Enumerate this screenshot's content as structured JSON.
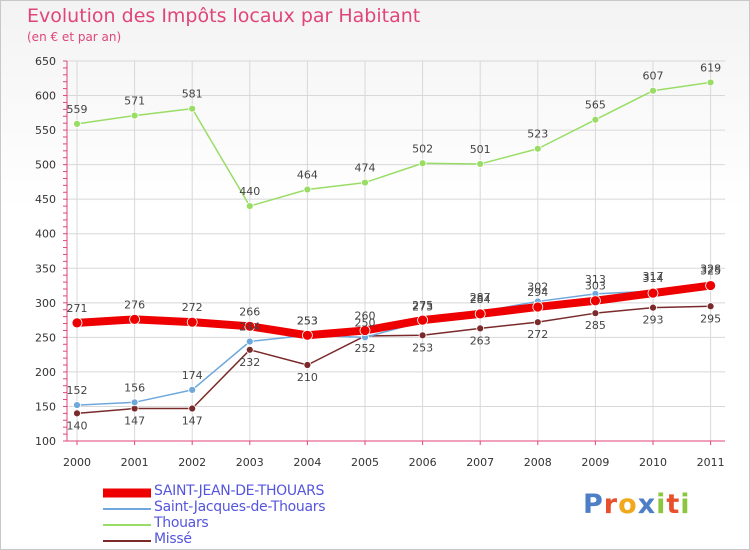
{
  "header": {
    "title": "Evolution des Impôts locaux par Habitant",
    "subtitle": "(en € et par an)"
  },
  "colors": {
    "title": "#e0457a",
    "axis": "#e0457a",
    "grid": "#d8d8d8",
    "legend_text": "#5555dd",
    "series": [
      "#ee0000",
      "#6fa8dc",
      "#99dd66",
      "#7a2a2a"
    ]
  },
  "chart_data": {
    "type": "line",
    "title": "Evolution des Impôts locaux par Habitant",
    "subtitle": "(en € et par an)",
    "xlabel": "",
    "ylabel": "",
    "x": [
      "2000",
      "2001",
      "2002",
      "2003",
      "2004",
      "2005",
      "2006",
      "2007",
      "2008",
      "2009",
      "2010",
      "2011"
    ],
    "ylim": [
      100,
      650
    ],
    "yticks": [
      100,
      150,
      200,
      250,
      300,
      350,
      400,
      450,
      500,
      550,
      600,
      650
    ],
    "grid": true,
    "legend_position": "bottom-left",
    "series": [
      {
        "name": "SAINT-JEAN-DE-THOUARS",
        "values": [
          271,
          276,
          272,
          266,
          253,
          260,
          275,
          284,
          294,
          303,
          314,
          325
        ]
      },
      {
        "name": "Saint-Jacques-de-Thouars",
        "values": [
          152,
          156,
          174,
          244,
          253,
          250,
          273,
          287,
          302,
          313,
          317,
          328
        ]
      },
      {
        "name": "Thouars",
        "values": [
          559,
          571,
          581,
          440,
          464,
          474,
          502,
          501,
          523,
          565,
          607,
          619
        ]
      },
      {
        "name": "Missé",
        "values": [
          140,
          147,
          147,
          232,
          210,
          252,
          253,
          263,
          272,
          285,
          293,
          295
        ]
      }
    ]
  },
  "logo": {
    "text": "Proxiti"
  }
}
